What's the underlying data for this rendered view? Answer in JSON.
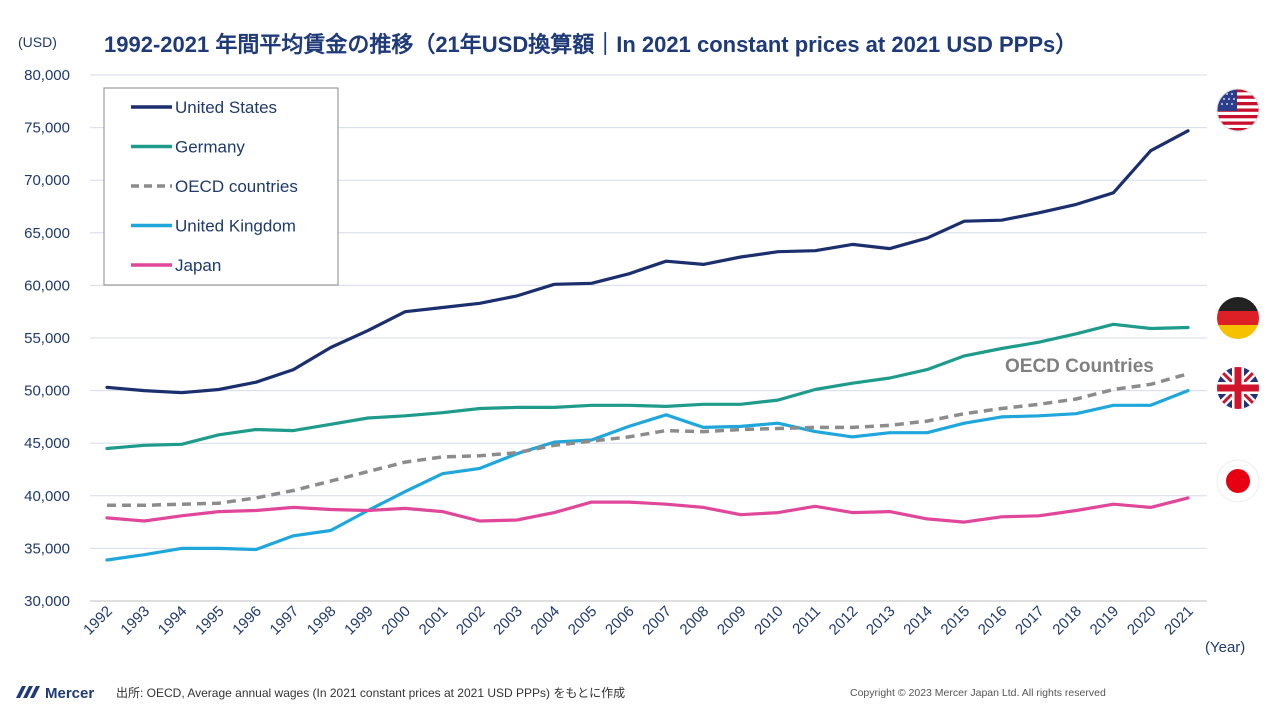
{
  "chart_data": {
    "type": "line",
    "title": "1992-2021 年間平均賃金の推移（21年USD換算額｜In 2021 constant prices at 2021 USD PPPs）",
    "ylabel": "(USD)",
    "xlabel": "(Year)",
    "ylim": [
      30000,
      80000
    ],
    "yticks": [
      30000,
      35000,
      40000,
      45000,
      50000,
      55000,
      60000,
      65000,
      70000,
      75000,
      80000
    ],
    "ytick_labels": [
      "30,000",
      "35,000",
      "40,000",
      "45,000",
      "50,000",
      "55,000",
      "60,000",
      "65,000",
      "70,000",
      "75,000",
      "80,000"
    ],
    "x": [
      "1992",
      "1993",
      "1994",
      "1995",
      "1996",
      "1997",
      "1998",
      "1999",
      "2000",
      "2001",
      "2002",
      "2003",
      "2004",
      "2005",
      "2006",
      "2007",
      "2008",
      "2009",
      "2010",
      "2011",
      "2012",
      "2013",
      "2014",
      "2015",
      "2016",
      "2017",
      "2018",
      "2019",
      "2020",
      "2021"
    ],
    "grid": true,
    "legend_position": "top-left",
    "series": [
      {
        "name": "United States",
        "color": "#1b2f6e",
        "style": "solid",
        "values": [
          50300,
          50000,
          49800,
          50100,
          50800,
          52000,
          54100,
          55700,
          57500,
          57900,
          58300,
          59000,
          60100,
          60200,
          61100,
          62300,
          62000,
          62700,
          63200,
          63300,
          63900,
          63500,
          64500,
          66100,
          66200,
          66900,
          67700,
          68800,
          72800,
          74700
        ]
      },
      {
        "name": "Germany",
        "color": "#1e9b8a",
        "style": "solid",
        "values": [
          44500,
          44800,
          44900,
          45800,
          46300,
          46200,
          46800,
          47400,
          47600,
          47900,
          48300,
          48400,
          48400,
          48600,
          48600,
          48500,
          48700,
          48700,
          49100,
          50100,
          50700,
          51200,
          52000,
          53300,
          54000,
          54600,
          55400,
          56300,
          55900,
          56000
        ]
      },
      {
        "name": "OECD countries",
        "color": "#8c8c8c",
        "style": "dashed",
        "values": [
          39100,
          39100,
          39200,
          39300,
          39800,
          40500,
          41400,
          42300,
          43200,
          43700,
          43800,
          44100,
          44800,
          45200,
          45600,
          46200,
          46100,
          46300,
          46400,
          46500,
          46500,
          46700,
          47100,
          47800,
          48300,
          48700,
          49200,
          50100,
          50600,
          51600
        ]
      },
      {
        "name": "United Kingdom",
        "color": "#1fa7db",
        "style": "solid",
        "values": [
          33900,
          34400,
          35000,
          35000,
          34900,
          36200,
          36700,
          38600,
          40400,
          42100,
          42600,
          44000,
          45100,
          45300,
          46600,
          47700,
          46500,
          46600,
          46900,
          46100,
          45600,
          46000,
          46000,
          46900,
          47500,
          47600,
          47800,
          48600,
          48600,
          50000
        ]
      },
      {
        "name": "Japan",
        "color": "#e0479a",
        "style": "solid",
        "values": [
          37900,
          37600,
          38100,
          38500,
          38600,
          38900,
          38700,
          38600,
          38800,
          38500,
          37600,
          37700,
          38400,
          39400,
          39400,
          39200,
          38900,
          38200,
          38400,
          39000,
          38400,
          38500,
          37800,
          37500,
          38000,
          38100,
          38600,
          39200,
          38900,
          39800
        ]
      }
    ],
    "annotations": [
      "OECD Countries"
    ]
  },
  "flags": [
    "us-flag-icon",
    "germany-flag-icon",
    "uk-flag-icon",
    "japan-flag-icon"
  ],
  "footer": {
    "brand": "Mercer",
    "source": "出所: OECD, Average annual wages (In 2021 constant prices at 2021 USD PPPs) をもとに作成",
    "copyright": "Copyright © 2023 Mercer Japan Ltd. All rights reserved"
  }
}
